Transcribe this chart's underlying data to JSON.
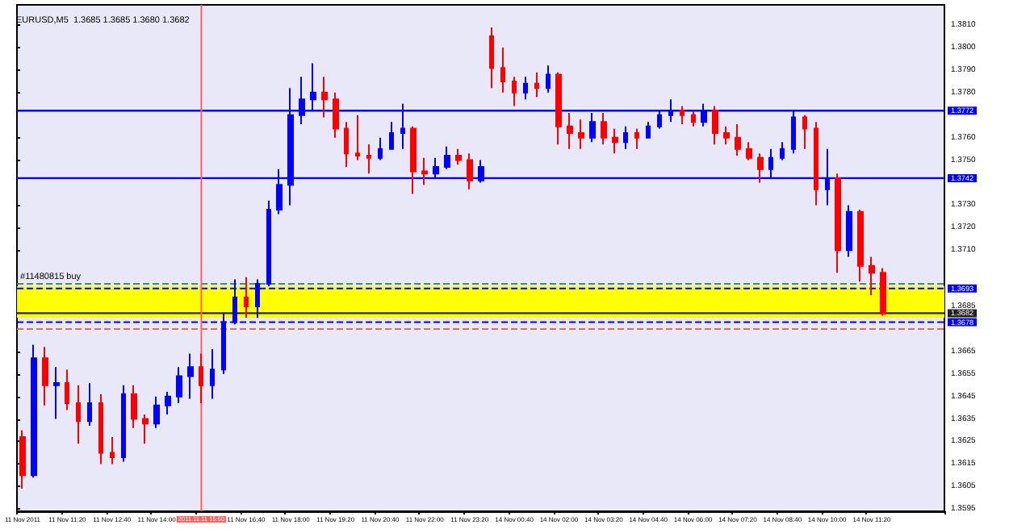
{
  "chart_data": {
    "type": "candlestick",
    "title": "EURUSD,M5  1.3685 1.3685 1.3680 1.3682",
    "categories": [
      "11 Nov 2011",
      null,
      null,
      null,
      "11 Nov 11:20",
      null,
      null,
      null,
      "11 Nov 12:40",
      null,
      null,
      null,
      "11 Nov 14:00",
      null,
      null,
      null,
      "2011.11.11 15:50",
      null,
      null,
      null,
      "11 Nov 16:40",
      null,
      null,
      null,
      "11 Nov 18:00",
      null,
      null,
      null,
      "11 Nov 19:20",
      null,
      null,
      null,
      "11 Nov 20:40",
      null,
      null,
      null,
      "11 Nov 22:00",
      null,
      null,
      null,
      "11 Nov 23:20",
      null,
      null,
      null,
      "14 Nov 00:40",
      null,
      null,
      null,
      "14 Nov 02:00",
      null,
      null,
      null,
      "14 Nov 03:20",
      null,
      null,
      null,
      "14 Nov 04:40",
      null,
      null,
      null,
      "14 Nov 06:00",
      null,
      null,
      null,
      "14 Nov 07:20",
      null,
      null,
      null,
      "14 Nov 08:40",
      null,
      null,
      null,
      "14 Nov 10:00",
      null,
      null,
      null,
      "14 Nov 11:20",
      null,
      null,
      null,
      null,
      null,
      null
    ],
    "ohlc": [
      [
        1.3627,
        1.363,
        1.3604,
        1.361
      ],
      [
        1.361,
        1.3668,
        1.3609,
        1.3662
      ],
      [
        1.3662,
        1.3667,
        1.3641,
        1.365
      ],
      [
        1.365,
        1.3658,
        1.3635,
        1.3651
      ],
      [
        1.3651,
        1.3657,
        1.3639,
        1.3642
      ],
      [
        1.3642,
        1.365,
        1.3624,
        1.3634
      ],
      [
        1.3634,
        1.3651,
        1.3632,
        1.3642
      ],
      [
        1.3642,
        1.3646,
        1.3615,
        1.362
      ],
      [
        1.362,
        1.3627,
        1.3615,
        1.3618
      ],
      [
        1.3618,
        1.365,
        1.3616,
        1.3646
      ],
      [
        1.3646,
        1.365,
        1.3631,
        1.3635
      ],
      [
        1.3635,
        1.3637,
        1.3624,
        1.3633
      ],
      [
        1.3633,
        1.3645,
        1.3631,
        1.3641
      ],
      [
        1.3641,
        1.3647,
        1.3637,
        1.3645
      ],
      [
        1.3645,
        1.3658,
        1.3642,
        1.3654
      ],
      [
        1.3654,
        1.3664,
        1.3644,
        1.3658
      ],
      [
        1.3658,
        1.3664,
        1.3642,
        1.365
      ],
      [
        1.365,
        1.3666,
        1.3644,
        1.3657
      ],
      [
        1.3657,
        1.3682,
        1.3655,
        1.3678
      ],
      [
        1.3678,
        1.3697,
        1.3677,
        1.3689
      ],
      [
        1.3689,
        1.3698,
        1.368,
        1.3685
      ],
      [
        1.3685,
        1.3697,
        1.368,
        1.3695
      ],
      [
        1.3695,
        1.3732,
        1.3694,
        1.3728
      ],
      [
        1.3728,
        1.3746,
        1.3726,
        1.3739
      ],
      [
        1.3739,
        1.3782,
        1.373,
        1.377
      ],
      [
        1.377,
        1.3787,
        1.3766,
        1.3777
      ],
      [
        1.3777,
        1.3793,
        1.3772,
        1.378
      ],
      [
        1.378,
        1.3787,
        1.3769,
        1.3777
      ],
      [
        1.3777,
        1.378,
        1.376,
        1.3764
      ],
      [
        1.3764,
        1.3767,
        1.3747,
        1.3753
      ],
      [
        1.3753,
        1.377,
        1.375,
        1.3752
      ],
      [
        1.3752,
        1.3757,
        1.3744,
        1.3751
      ],
      [
        1.3751,
        1.376,
        1.375,
        1.3755
      ],
      [
        1.3755,
        1.3767,
        1.3755,
        1.3762
      ],
      [
        1.3762,
        1.3775,
        1.3755,
        1.3764
      ],
      [
        1.3764,
        1.3765,
        1.3735,
        1.3745
      ],
      [
        1.3745,
        1.3751,
        1.3739,
        1.3744
      ],
      [
        1.3744,
        1.3751,
        1.3742,
        1.3747
      ],
      [
        1.3747,
        1.3756,
        1.3746,
        1.3752
      ],
      [
        1.3752,
        1.3755,
        1.3748,
        1.375
      ],
      [
        1.375,
        1.3753,
        1.3737,
        1.3741
      ],
      [
        1.3741,
        1.375,
        1.374,
        1.3747
      ],
      [
        1.3805,
        1.3809,
        1.3782,
        1.3791
      ],
      [
        1.3791,
        1.38,
        1.378,
        1.3785
      ],
      [
        1.3785,
        1.3787,
        1.3774,
        1.378
      ],
      [
        1.378,
        1.3787,
        1.3777,
        1.3784
      ],
      [
        1.3784,
        1.3789,
        1.3778,
        1.3782
      ],
      [
        1.3782,
        1.3792,
        1.378,
        1.3788
      ],
      [
        1.3788,
        1.3789,
        1.3757,
        1.3765
      ],
      [
        1.3765,
        1.3771,
        1.3755,
        1.3762
      ],
      [
        1.3762,
        1.3768,
        1.3755,
        1.376
      ],
      [
        1.376,
        1.3771,
        1.3758,
        1.3767
      ],
      [
        1.3767,
        1.3771,
        1.3757,
        1.376
      ],
      [
        1.376,
        1.3764,
        1.3753,
        1.3758
      ],
      [
        1.3758,
        1.3765,
        1.3755,
        1.3762
      ],
      [
        1.3762,
        1.3764,
        1.3755,
        1.376
      ],
      [
        1.376,
        1.3767,
        1.376,
        1.3765
      ],
      [
        1.3765,
        1.3772,
        1.3764,
        1.377
      ],
      [
        1.377,
        1.3777,
        1.3767,
        1.3772
      ],
      [
        1.3772,
        1.3774,
        1.3766,
        1.377
      ],
      [
        1.377,
        1.3772,
        1.3765,
        1.3767
      ],
      [
        1.3767,
        1.3775,
        1.3765,
        1.3772
      ],
      [
        1.3772,
        1.3774,
        1.3757,
        1.3762
      ],
      [
        1.3762,
        1.3765,
        1.3757,
        1.376
      ],
      [
        1.376,
        1.3766,
        1.3752,
        1.3755
      ],
      [
        1.3755,
        1.3758,
        1.375,
        1.3751
      ],
      [
        1.3751,
        1.3753,
        1.374,
        1.3746
      ],
      [
        1.3746,
        1.3755,
        1.3742,
        1.3751
      ],
      [
        1.3751,
        1.3758,
        1.375,
        1.3755
      ],
      [
        1.3755,
        1.3772,
        1.3753,
        1.3769
      ],
      [
        1.3769,
        1.377,
        1.3755,
        1.3764
      ],
      [
        1.3764,
        1.3767,
        1.373,
        1.3737
      ],
      [
        1.3737,
        1.3755,
        1.373,
        1.3742
      ],
      [
        1.3742,
        1.3744,
        1.37,
        1.371
      ],
      [
        1.371,
        1.373,
        1.3707,
        1.3727
      ],
      [
        1.3727,
        1.3728,
        1.3696,
        1.3703
      ],
      [
        1.3703,
        1.3707,
        1.369,
        1.37
      ],
      [
        1.37,
        1.3702,
        1.3681,
        1.3682
      ],
      null,
      null,
      null,
      null,
      null
    ],
    "colors": [
      "#ff0000",
      "#0000ff",
      "#ff0000",
      "#0000ff",
      "#ff0000",
      "#ff0000",
      "#0000ff",
      "#ff0000",
      "#ff0000",
      "#0000ff",
      "#ff0000",
      "#ff0000",
      "#0000ff",
      "#0000ff",
      "#0000ff",
      "#0000ff",
      "#ff0000",
      "#0000ff",
      "#0000ff",
      "#0000ff",
      "#ff0000",
      "#0000ff",
      "#0000ff",
      "#0000ff",
      "#0000ff",
      "#0000ff",
      "#0000ff",
      "#ff0000",
      "#ff0000",
      "#ff0000",
      "#ff0000",
      "#ff0000",
      "#0000ff",
      "#0000ff",
      "#0000ff",
      "#ff0000",
      "#ff0000",
      "#0000ff",
      "#0000ff",
      "#ff0000",
      "#ff0000",
      "#0000ff",
      "#ff0000",
      "#ff0000",
      "#ff0000",
      "#0000ff",
      "#ff0000",
      "#0000ff",
      "#ff0000",
      "#ff0000",
      "#ff0000",
      "#0000ff",
      "#ff0000",
      "#ff0000",
      "#0000ff",
      "#ff0000",
      "#0000ff",
      "#0000ff",
      "#0000ff",
      "#ff0000",
      "#ff0000",
      "#0000ff",
      "#ff0000",
      "#ff0000",
      "#ff0000",
      "#ff0000",
      "#ff0000",
      "#0000ff",
      "#0000ff",
      "#0000ff",
      "#ff0000",
      "#ff0000",
      "#0000ff",
      "#ff0000",
      "#0000ff",
      "#ff0000",
      "#ff0000",
      "#ff0000",
      null,
      null,
      null,
      null,
      null
    ],
    "ylim": [
      1.3594,
      1.3819
    ],
    "yticks": [
      {
        "value": 1.381,
        "label": "1.3810"
      },
      {
        "value": 1.38,
        "label": "1.3800"
      },
      {
        "value": 1.379,
        "label": "1.3790"
      },
      {
        "value": 1.378,
        "label": "1.3780"
      },
      {
        "value": 1.376,
        "label": "1.3760"
      },
      {
        "value": 1.375,
        "label": "1.3750"
      },
      {
        "value": 1.373,
        "label": "1.3730"
      },
      {
        "value": 1.372,
        "label": "1.3720"
      },
      {
        "value": 1.371,
        "label": "1.3710"
      },
      {
        "value": 1.3685,
        "label": "1.3685"
      },
      {
        "value": 1.3665,
        "label": "1.3665"
      },
      {
        "value": 1.3655,
        "label": "1.3655"
      },
      {
        "value": 1.3645,
        "label": "1.3645"
      },
      {
        "value": 1.3635,
        "label": "1.3635"
      },
      {
        "value": 1.3625,
        "label": "1.3625"
      },
      {
        "value": 1.3615,
        "label": "1.3615"
      },
      {
        "value": 1.3605,
        "label": "1.3605"
      },
      {
        "value": 1.3595,
        "label": "1.3595"
      }
    ],
    "bands": [
      {
        "axis": "y",
        "from": 1.368,
        "to": 1.3694,
        "color": "#ffff00"
      }
    ],
    "ref_lines": [
      {
        "axis": "y",
        "value": 1.3772,
        "label": "1.3772",
        "color": "#0000ff",
        "line_style": "solid"
      },
      {
        "axis": "y",
        "value": 1.3742,
        "label": "1.3742",
        "color": "#0000ff",
        "line_style": "solid"
      },
      {
        "axis": "y",
        "value": 1.3693,
        "label": "1.3693",
        "color": "#0000ff",
        "line_style": "dashed"
      },
      {
        "axis": "y",
        "value": 1.3678,
        "label": "1.3678",
        "color": "#0000ff",
        "line_style": "dashed"
      },
      {
        "axis": "y",
        "value": 1.3695,
        "label": "#11480815 buy",
        "color": "#3c9a3c",
        "line_style": "dashed"
      },
      {
        "axis": "y",
        "value": 1.3675,
        "color": "#e07050",
        "line_style": "dashed"
      },
      {
        "axis": "y",
        "value": 1.3682,
        "label": "1.3682",
        "color": "#222222",
        "line_style": "solid"
      },
      {
        "axis": "x",
        "value": "2011.11.11 15:50",
        "color": "#ff6060",
        "line_style": "solid"
      }
    ]
  }
}
